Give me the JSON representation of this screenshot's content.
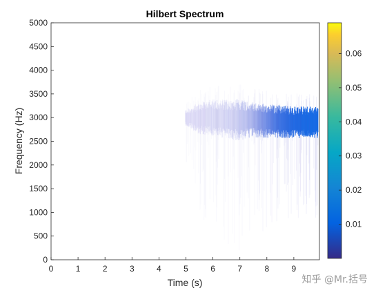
{
  "chart_data": {
    "type": "scatter",
    "title": "Hilbert Spectrum",
    "xlabel": "Time (s)",
    "ylabel": "Frequency (Hz)",
    "xlim": [
      0,
      10
    ],
    "ylim": [
      0,
      5000
    ],
    "xticks": [
      "0",
      "1",
      "2",
      "3",
      "4",
      "5",
      "6",
      "7",
      "8",
      "9"
    ],
    "yticks": [
      "0",
      "500",
      "1000",
      "1500",
      "2000",
      "2500",
      "3000",
      "3500",
      "4000",
      "4500",
      "5000"
    ],
    "colorbar": {
      "colormap": "parula",
      "range": [
        0,
        0.069
      ],
      "ticks": [
        "0.01",
        "0.02",
        "0.03",
        "0.04",
        "0.05",
        "0.06"
      ]
    },
    "series": [
      {
        "points": [
          {
            "t": 5.0,
            "f": 3000,
            "amp": 0.0005,
            "spread": 150
          },
          {
            "t": 5.5,
            "f": 2980,
            "amp": 0.001,
            "spread": 300
          },
          {
            "t": 6.0,
            "f": 3000,
            "amp": 0.002,
            "spread": 350
          },
          {
            "t": 6.5,
            "f": 2970,
            "amp": 0.003,
            "spread": 380
          },
          {
            "t": 7.0,
            "f": 2950,
            "amp": 0.005,
            "spread": 400
          },
          {
            "t": 7.5,
            "f": 2960,
            "amp": 0.008,
            "spread": 350
          },
          {
            "t": 8.0,
            "f": 2930,
            "amp": 0.012,
            "spread": 330
          },
          {
            "t": 8.5,
            "f": 2920,
            "amp": 0.016,
            "spread": 320
          },
          {
            "t": 9.0,
            "f": 2900,
            "amp": 0.019,
            "spread": 310
          },
          {
            "t": 9.5,
            "f": 2900,
            "amp": 0.021,
            "spread": 300
          },
          {
            "t": 9.95,
            "f": 2900,
            "amp": 0.022,
            "spread": 300
          }
        ]
      }
    ],
    "grid": false
  },
  "watermark": "知乎 @Mr.括号"
}
